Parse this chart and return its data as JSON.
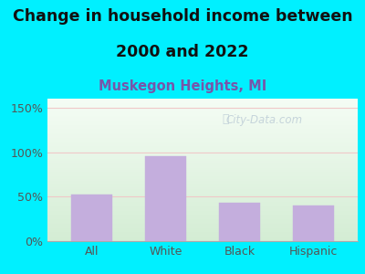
{
  "title_line1": "Change in household income between",
  "title_line2": "2000 and 2022",
  "subtitle": "Muskegon Heights, MI",
  "categories": [
    "All",
    "White",
    "Black",
    "Hispanic"
  ],
  "values": [
    52,
    95,
    43,
    40
  ],
  "bar_color": "#c4aedd",
  "bar_edge_color": "#c4aedd",
  "ylim": [
    0,
    160
  ],
  "yticks": [
    0,
    50,
    100,
    150
  ],
  "ytick_labels": [
    "0%",
    "50%",
    "100%",
    "150%"
  ],
  "background_color": "#00f0ff",
  "plot_bg_top": "#f5fdf5",
  "plot_bg_bottom": "#d4edd4",
  "grid_color": "#f0c8c8",
  "title_fontsize": 12.5,
  "subtitle_fontsize": 10.5,
  "subtitle_color": "#7755aa",
  "tick_color": "#555555",
  "watermark": "City-Data.com",
  "watermark_color": "#b8c8d4",
  "watermark_alpha": 0.75
}
